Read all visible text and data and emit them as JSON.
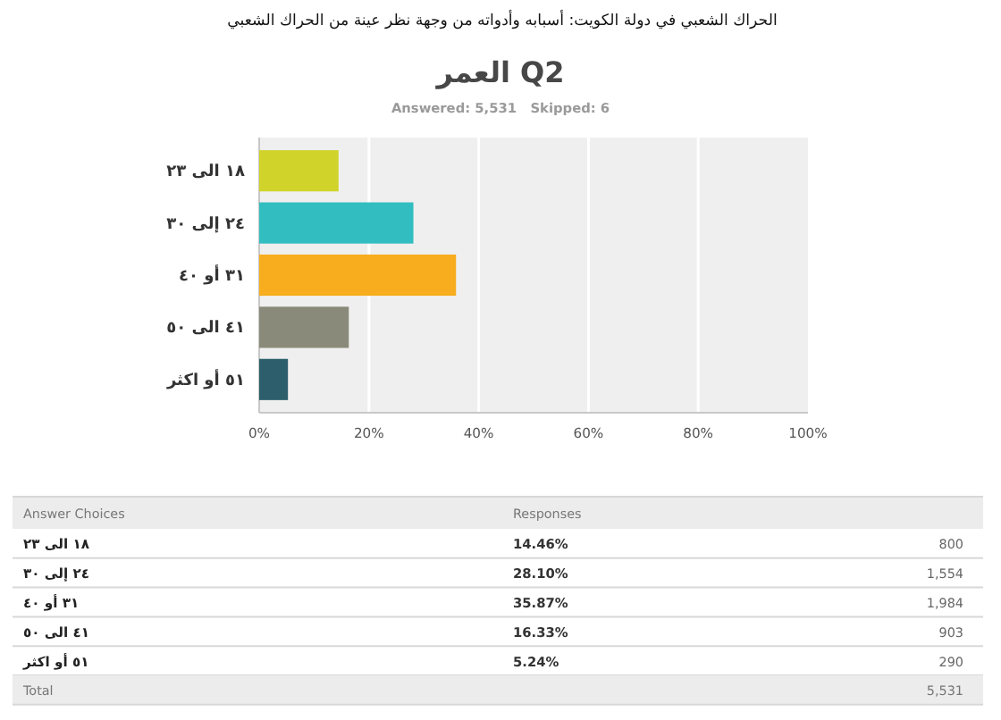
{
  "chart_data": [
    {
      "type": "bar",
      "orientation": "horizontal",
      "title": "Q2 العمر",
      "subtitle": "Answered: 5,531   Skipped: 6",
      "annotations": [
        "الحراك الشعبي في دولة الكويت: أسبابه وأدواته من وجهة نظر عينة من الحراك الشعبي"
      ],
      "categories": [
        "١٨ الى ٢٣",
        "٢٤ إلى ٣٠",
        "٣١ أو ٤٠",
        "٤١ الى ٥٠",
        "٥١ أو اكثر"
      ],
      "values": [
        14.46,
        28.1,
        35.87,
        16.33,
        5.24
      ],
      "colors": [
        "#d0d32a",
        "#32bec1",
        "#f7ad1e",
        "#8a8a7a",
        "#2c5f6b"
      ],
      "xlim": [
        0,
        100
      ],
      "xticks": [
        {
          "value": 0,
          "label": "0%"
        },
        {
          "value": 20,
          "label": "20%"
        },
        {
          "value": 40,
          "label": "40%"
        },
        {
          "value": 60,
          "label": "60%"
        },
        {
          "value": 80,
          "label": "80%"
        },
        {
          "value": 100,
          "label": "100%"
        }
      ],
      "grid": "x"
    },
    {
      "type": "other",
      "xlabel": "Answer Choices",
      "ylabel": "Responses",
      "categories": [
        "١٨ الى ٢٣",
        "٢٤ إلى ٣٠",
        "٣١ أو ٤٠",
        "٤١ الى ٥٠",
        "٥١ أو اكثر"
      ],
      "series": [
        {
          "values": [
            14.46,
            28.1,
            35.87,
            16.33,
            5.24
          ],
          "value_labels": [
            "14.46%",
            "28.10%",
            "35.87%",
            "16.33%",
            "5.24%"
          ]
        },
        {
          "values": [
            800,
            1554,
            1984,
            903,
            290
          ],
          "value_labels": [
            "800",
            "1,554",
            "1,984",
            "903",
            "290"
          ]
        }
      ],
      "totals": [
        "5,531"
      ],
      "annotations": [
        "Total"
      ]
    }
  ]
}
